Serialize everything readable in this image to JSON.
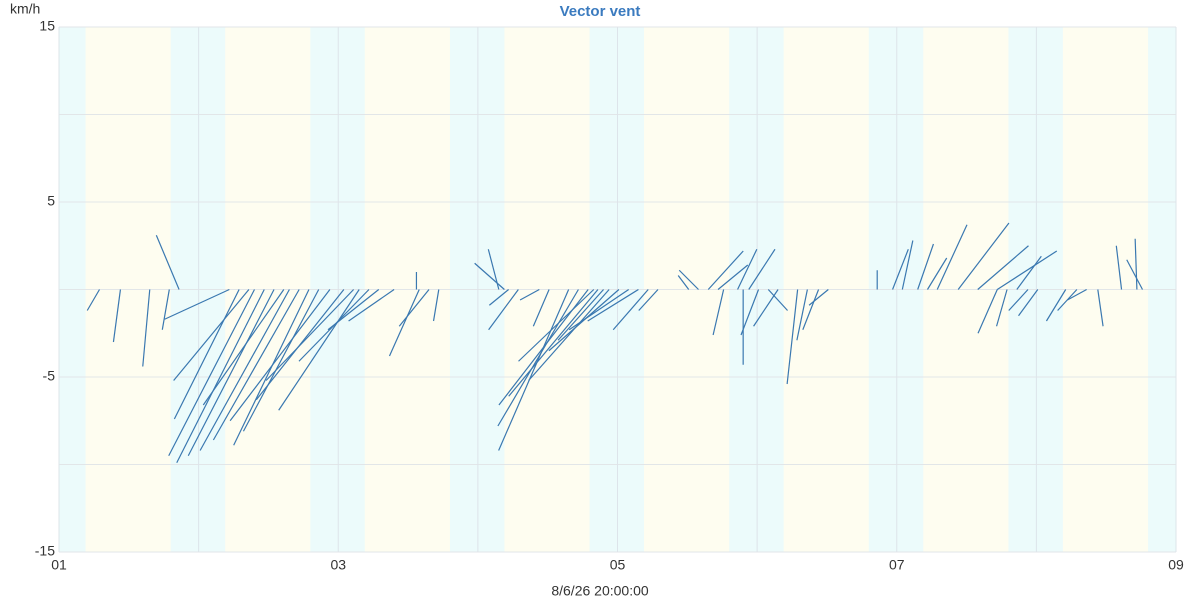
{
  "chart_data": {
    "type": "vector",
    "title": "Vector vent",
    "y_unit": "km/h",
    "x_label": "8/6/26 20:00:00",
    "color": "#3a78b0",
    "xlim": [
      1,
      9
    ],
    "ylim": [
      -15,
      15
    ],
    "xticks": [
      {
        "value": 1,
        "label": "01"
      },
      {
        "value": 3,
        "label": "03"
      },
      {
        "value": 5,
        "label": "05"
      },
      {
        "value": 7,
        "label": "07"
      },
      {
        "value": 9,
        "label": "09"
      }
    ],
    "yticks": [
      15,
      5,
      -5,
      -15
    ],
    "xgrid": [
      1,
      2,
      3,
      4,
      5,
      6,
      7,
      8,
      9
    ],
    "ygrid": [
      15,
      10,
      5,
      0,
      -5,
      -10,
      -15
    ],
    "night_bands": [
      [
        1,
        1.19
      ],
      [
        1.8,
        2.19
      ],
      [
        2.8,
        3.19
      ],
      [
        3.8,
        4.19
      ],
      [
        4.8,
        5.19
      ],
      [
        5.8,
        6.19
      ],
      [
        6.8,
        7.19
      ],
      [
        7.8,
        8.19
      ],
      [
        8.8,
        9
      ]
    ],
    "vectors": {
      "x": [
        1.29,
        1.44,
        1.65,
        1.79,
        1.86,
        2.22,
        2.29,
        2.36,
        2.4,
        2.47,
        2.54,
        2.61,
        2.65,
        2.72,
        2.79,
        2.86,
        2.94,
        3.04,
        3.11,
        3.15,
        3.22,
        3.29,
        3.4,
        3.58,
        3.65,
        3.56,
        3.72,
        4.15,
        4.19,
        4.22,
        4.29,
        4.44,
        4.51,
        4.65,
        4.72,
        4.79,
        4.83,
        4.86,
        4.9,
        4.94,
        5.01,
        5.08,
        5.15,
        5.22,
        5.29,
        5.51,
        5.58,
        5.65,
        5.72,
        5.76,
        5.86,
        5.94,
        5.9,
        6.01,
        6.08,
        6.15,
        6.29,
        6.36,
        6.44,
        6.51,
        6.86,
        6.97,
        7.04,
        7.15,
        7.22,
        7.29,
        7.44,
        7.58,
        7.72,
        7.72,
        7.79,
        7.86,
        7.94,
        8.01,
        8.21,
        8.29,
        8.36,
        8.44,
        8.61,
        8.72,
        8.76
      ],
      "u": [
        -0.7,
        -0.4,
        -0.4,
        -0.4,
        -1.3,
        -3.7,
        -3.7,
        -4.3,
        -4.9,
        -5.0,
        -4.9,
        -4.6,
        -5.1,
        -4.9,
        -4.3,
        -4.3,
        -5.7,
        -5.0,
        -5.0,
        -4.6,
        -4.0,
        -2.9,
        -2.6,
        -1.7,
        -1.7,
        0,
        -0.3,
        -0.6,
        -1.7,
        -1.1,
        -1.7,
        -1.1,
        -0.9,
        -4.0,
        -4.6,
        -5.1,
        -4.3,
        -5.1,
        -2.6,
        -4.6,
        -4.0,
        -3.4,
        -2.9,
        -2.0,
        -1.1,
        -0.6,
        -1.1,
        2.0,
        1.7,
        -0.6,
        1.1,
        1.5,
        0,
        -1.0,
        1.1,
        -1.4,
        -0.6,
        -0.6,
        -0.9,
        -1.1,
        0,
        0.9,
        0.6,
        0.9,
        1.1,
        1.7,
        2.9,
        2.9,
        -1.1,
        3.4,
        -0.6,
        1.4,
        -1.1,
        -1.1,
        -1.1,
        -1.1,
        -1.1,
        0.3,
        -0.3,
        -0.1,
        -0.9
      ],
      "v": [
        -1.2,
        -3.0,
        -4.4,
        -2.3,
        3.1,
        -1.7,
        -7.4,
        -5.2,
        -9.5,
        -9.9,
        -9.5,
        -6.6,
        -9.2,
        -8.6,
        -8.9,
        -8.1,
        -7.5,
        -6.3,
        -5.2,
        -6.9,
        -4.1,
        -2.3,
        -1.8,
        -3.8,
        -2.1,
        1.0,
        -1.8,
        2.3,
        1.5,
        -0.9,
        -2.3,
        -0.6,
        -2.1,
        -9.2,
        -7.8,
        -6.6,
        -4.1,
        -6.1,
        -2.9,
        -5.2,
        -3.5,
        -2.3,
        -1.8,
        -2.3,
        -1.2,
        0.8,
        1.1,
        2.2,
        1.4,
        -2.6,
        2.3,
        2.3,
        -4.3,
        -2.6,
        -1.2,
        -2.1,
        -5.4,
        -2.9,
        -2.3,
        -0.9,
        1.1,
        2.3,
        2.8,
        2.6,
        1.8,
        3.7,
        3.8,
        2.5,
        -2.5,
        2.2,
        -2.1,
        1.9,
        -1.2,
        -1.5,
        -1.8,
        -1.2,
        -0.6,
        -2.1,
        2.5,
        2.9,
        1.7
      ]
    }
  }
}
